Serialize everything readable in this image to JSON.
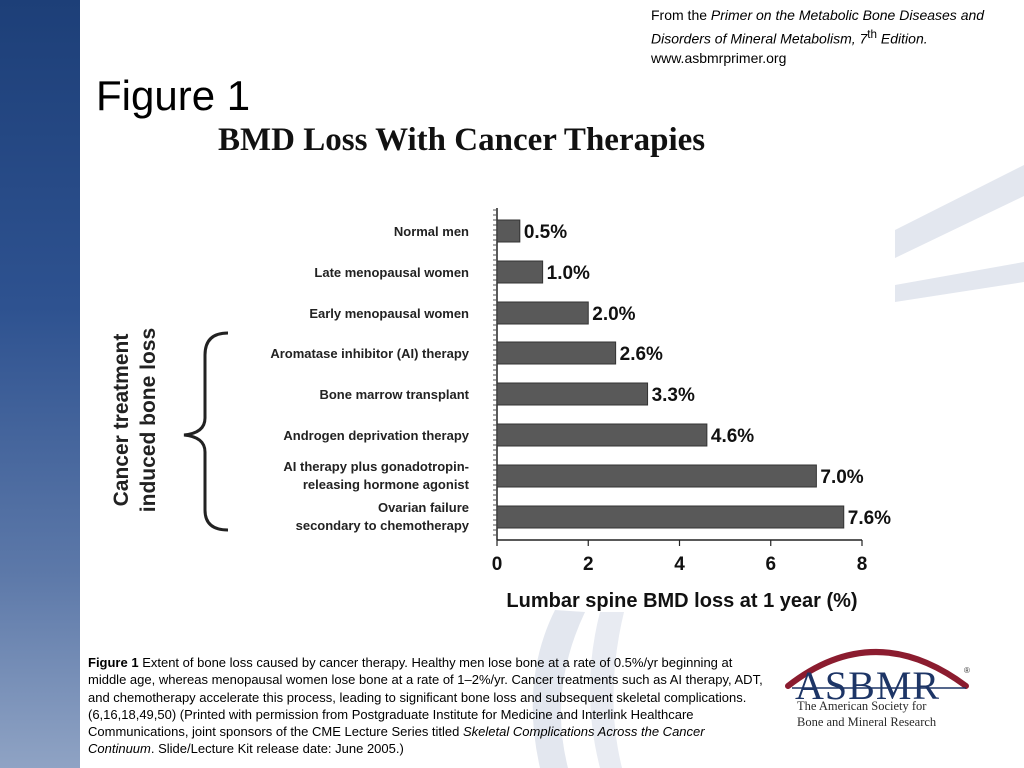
{
  "source_note": {
    "from": "From the ",
    "book": "Primer on the Metabolic Bone Diseases and Disorders of Mineral Metabolism, 7",
    "sup": "th",
    "edition": " Edition.",
    "url": "www.asbmrprimer.org"
  },
  "slide_title": "Figure 1",
  "group_label": [
    "Cancer treatment",
    "induced bone loss"
  ],
  "chart_data": {
    "type": "bar",
    "orientation": "horizontal",
    "title": "BMD Loss With Cancer Therapies",
    "xlabel": "Lumbar spine BMD loss at 1 year (%)",
    "xlim": [
      0,
      8
    ],
    "xticks": [
      "0",
      "2",
      "4",
      "6",
      "8"
    ],
    "categories": [
      [
        "Normal men"
      ],
      [
        "Late menopausal women"
      ],
      [
        "Early menopausal women"
      ],
      [
        "Aromatase inhibitor (AI) therapy"
      ],
      [
        "Bone marrow transplant"
      ],
      [
        "Androgen deprivation therapy"
      ],
      [
        "AI therapy plus gonadotropin-",
        "releasing hormone agonist"
      ],
      [
        "Ovarian failure",
        "secondary to chemotherapy"
      ]
    ],
    "values": [
      0.5,
      1.0,
      2.0,
      2.6,
      3.3,
      4.6,
      7.0,
      7.6
    ],
    "value_labels": [
      "0.5%",
      "1.0%",
      "2.0%",
      "2.6%",
      "3.3%",
      "4.6%",
      "7.0%",
      "7.6%"
    ],
    "bar_color": "#595959",
    "grid": false
  },
  "caption": {
    "label": "Figure 1",
    "text": " Extent of bone loss caused by cancer therapy. Healthy men lose bone at a rate of 0.5%/yr beginning at middle age, whereas menopausal women lose bone at a rate of 1–2%/yr. Cancer treatments such as AI therapy, ADT, and chemotherapy accelerate this process, leading to significant bone loss and subsequent skeletal complications.(6,16,18,49,50) (Printed with permission from Postgraduate Institute for Medicine and Interlink Healthcare Communications, joint sponsors of the CME Lecture Series titled ",
    "series_title": "Skeletal Complications Across the Cancer Continuum",
    "ending": ". Slide/Lecture Kit release date: June 2005.)"
  },
  "logo": {
    "wordmark": "ASBMR",
    "registered": "®",
    "line1": "The American Society for",
    "line2": "Bone and Mineral Research",
    "ring_color": "#8b1c2f"
  },
  "colors": {
    "band": "#2e5290",
    "decor": "#dfe4ee"
  }
}
